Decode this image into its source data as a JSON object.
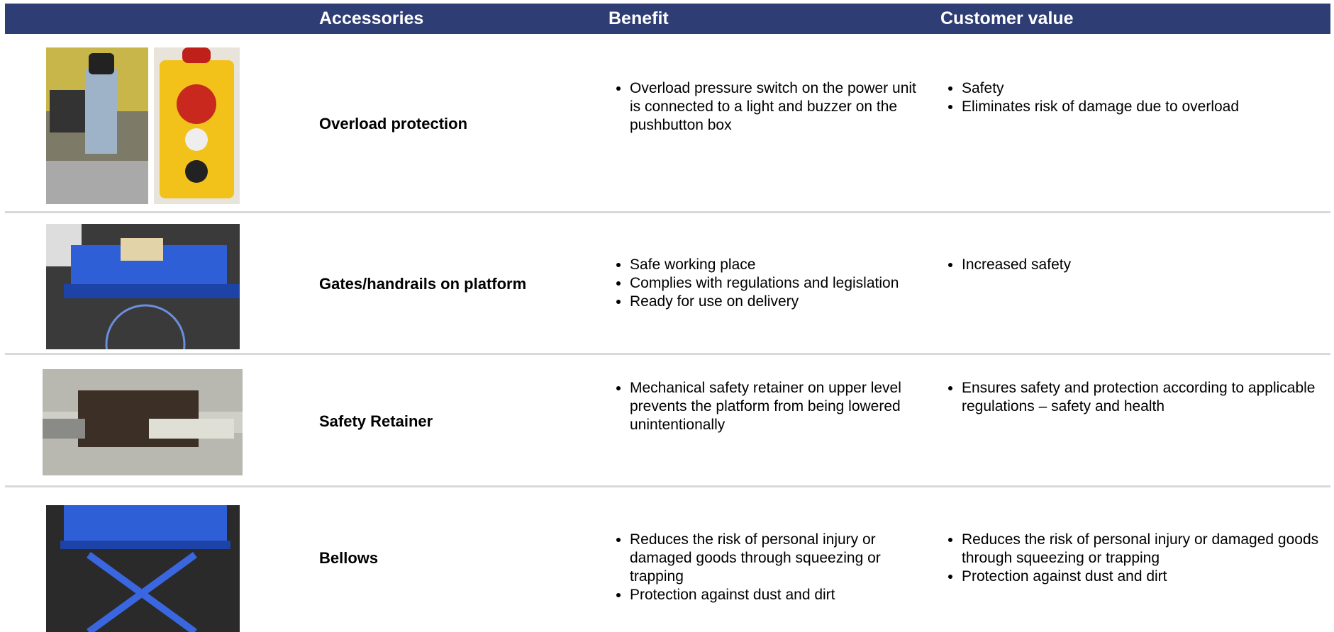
{
  "header": [
    "Accessories",
    "Benefit",
    "Customer value"
  ],
  "rows": [
    {
      "name": "Overload protection",
      "benefit": [
        "Overload pressure switch on the power unit is connected to a light and buzzer on the pushbutton box"
      ],
      "value": [
        "Safety",
        "Eliminates risk of damage due to overload"
      ]
    },
    {
      "name": "Gates/handrails on platform",
      "benefit": [
        "Safe working place",
        "Complies with regulations and legislation",
        "Ready for use on delivery"
      ],
      "value": [
        "Increased safety"
      ]
    },
    {
      "name": "Safety Retainer",
      "benefit": [
        "Mechanical safety retainer on upper level prevents the platform from being lowered unintentionally"
      ],
      "value": [
        "Ensures safety and protection according to applicable regulations – safety and health"
      ]
    },
    {
      "name": "Bellows",
      "benefit": [
        "Reduces the risk of personal injury or damaged goods through squeezing or trapping",
        "Protection against dust and dirt"
      ],
      "value": [
        "Reduces the risk of personal injury or damaged goods through squeezing or trapping",
        "Protection against dust and dirt"
      ]
    }
  ]
}
